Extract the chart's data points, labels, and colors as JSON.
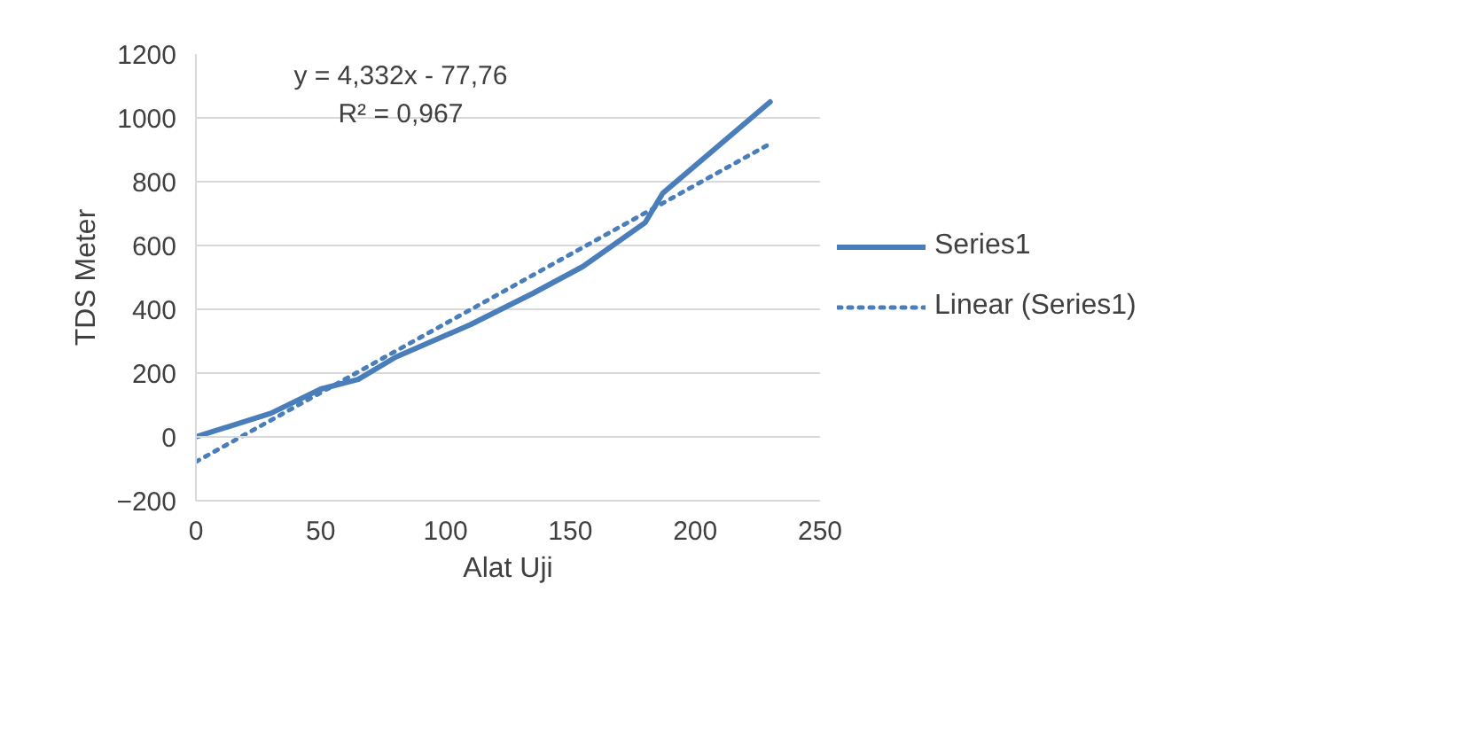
{
  "chart_data": {
    "type": "line",
    "xlabel": "Alat Uji",
    "ylabel": "TDS Meter",
    "x": [
      0,
      30,
      50,
      65,
      80,
      110,
      135,
      155,
      180,
      187,
      230
    ],
    "series": [
      {
        "name": "Series1",
        "color": "#4a7ebb",
        "values": [
          0,
          74,
          150,
          180,
          250,
          352,
          450,
          534,
          672,
          764,
          1050
        ],
        "line_style": "solid"
      },
      {
        "name": "Linear (Series1)",
        "color": "#4a7ebb",
        "type": "line",
        "x": [
          0,
          230
        ],
        "values": [
          -78,
          919
        ],
        "line_style": "dotted"
      }
    ],
    "annotations": [
      "y = 4,332x - 77,76",
      "R² = 0,967"
    ],
    "xlim": [
      0,
      250
    ],
    "xticks": [
      0,
      50,
      100,
      150,
      200,
      250
    ],
    "ylim": [
      -200,
      1200
    ],
    "yticks": [
      -200,
      0,
      200,
      400,
      600,
      800,
      1000,
      1200
    ],
    "grid": "y",
    "legend": "right",
    "marker": "none"
  }
}
